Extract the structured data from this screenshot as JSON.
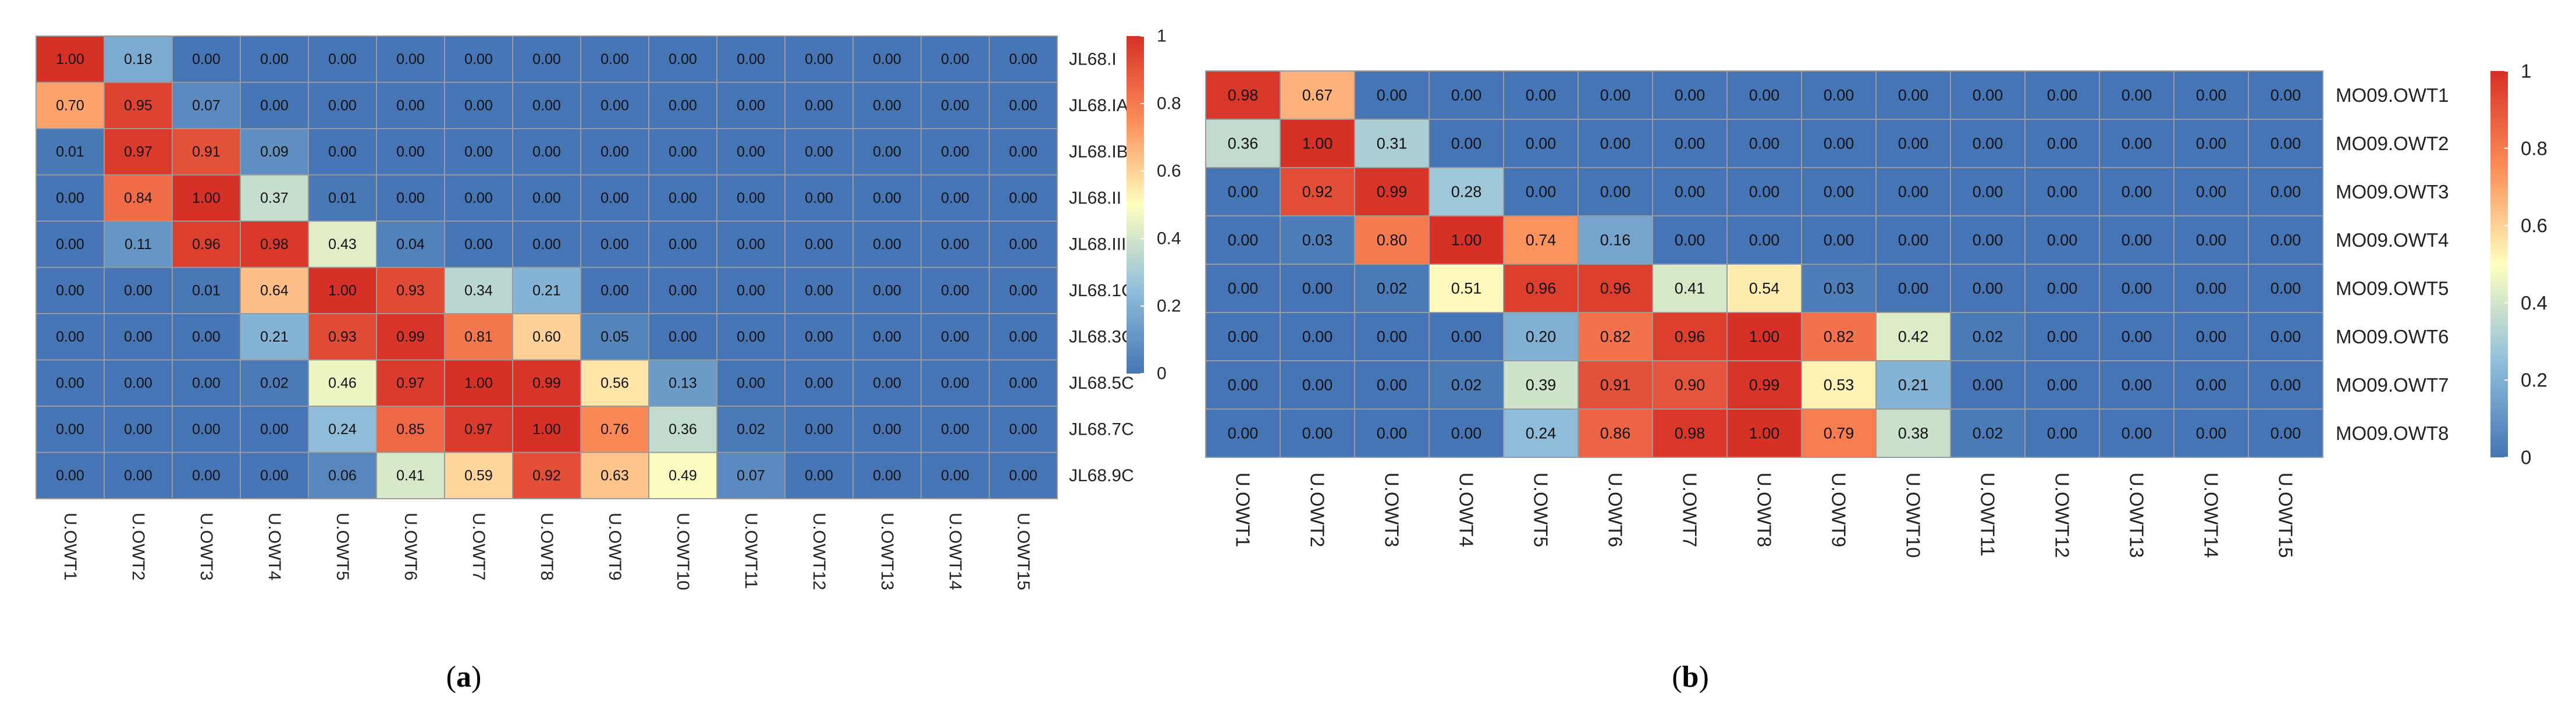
{
  "colorscale": {
    "stops": [
      "#4575b4",
      "#91bfdb",
      "#ffffbf",
      "#fc8d59",
      "#d73027"
    ],
    "cell_border": "#9a9a9a"
  },
  "chart_data": [
    {
      "type": "heatmap",
      "panel_label": "(a)",
      "x_categories": [
        "U.OWT1",
        "U.OWT2",
        "U.OWT3",
        "U.OWT4",
        "U.OWT5",
        "U.OWT6",
        "U.OWT7",
        "U.OWT8",
        "U.OWT9",
        "U.OWT10",
        "U.OWT11",
        "U.OWT12",
        "U.OWT13",
        "U.OWT14",
        "U.OWT15"
      ],
      "y_categories": [
        "JL68.I",
        "JL68.IA",
        "JL68.IB",
        "JL68.II",
        "JL68.III",
        "JL68.1C",
        "JL68.3C",
        "JL68.5C",
        "JL68.7C",
        "JL68.9C"
      ],
      "values": [
        [
          1.0,
          0.18,
          0.0,
          0.0,
          0.0,
          0.0,
          0.0,
          0.0,
          0.0,
          0.0,
          0.0,
          0.0,
          0.0,
          0.0,
          0.0
        ],
        [
          0.7,
          0.95,
          0.07,
          0.0,
          0.0,
          0.0,
          0.0,
          0.0,
          0.0,
          0.0,
          0.0,
          0.0,
          0.0,
          0.0,
          0.0
        ],
        [
          0.01,
          0.97,
          0.91,
          0.09,
          0.0,
          0.0,
          0.0,
          0.0,
          0.0,
          0.0,
          0.0,
          0.0,
          0.0,
          0.0,
          0.0
        ],
        [
          0.0,
          0.84,
          1.0,
          0.37,
          0.01,
          0.0,
          0.0,
          0.0,
          0.0,
          0.0,
          0.0,
          0.0,
          0.0,
          0.0,
          0.0
        ],
        [
          0.0,
          0.11,
          0.96,
          0.98,
          0.43,
          0.04,
          0.0,
          0.0,
          0.0,
          0.0,
          0.0,
          0.0,
          0.0,
          0.0,
          0.0
        ],
        [
          0.0,
          0.0,
          0.01,
          0.64,
          1.0,
          0.93,
          0.34,
          0.21,
          0.0,
          0.0,
          0.0,
          0.0,
          0.0,
          0.0,
          0.0
        ],
        [
          0.0,
          0.0,
          0.0,
          0.21,
          0.93,
          0.99,
          0.81,
          0.6,
          0.05,
          0.0,
          0.0,
          0.0,
          0.0,
          0.0,
          0.0
        ],
        [
          0.0,
          0.0,
          0.0,
          0.02,
          0.46,
          0.97,
          1.0,
          0.99,
          0.56,
          0.13,
          0.0,
          0.0,
          0.0,
          0.0,
          0.0
        ],
        [
          0.0,
          0.0,
          0.0,
          0.0,
          0.24,
          0.85,
          0.97,
          1.0,
          0.76,
          0.36,
          0.02,
          0.0,
          0.0,
          0.0,
          0.0
        ],
        [
          0.0,
          0.0,
          0.0,
          0.0,
          0.06,
          0.41,
          0.59,
          0.92,
          0.63,
          0.49,
          0.07,
          0.0,
          0.0,
          0.0,
          0.0
        ]
      ],
      "colorbar": {
        "min": 0,
        "max": 1,
        "ticks": [
          "0",
          "0.2",
          "0.4",
          "0.6",
          "0.8",
          "1"
        ]
      }
    },
    {
      "type": "heatmap",
      "panel_label": "(b)",
      "x_categories": [
        "U.OWT1",
        "U.OWT2",
        "U.OWT3",
        "U.OWT4",
        "U.OWT5",
        "U.OWT6",
        "U.OWT7",
        "U.OWT8",
        "U.OWT9",
        "U.OWT10",
        "U.OWT11",
        "U.OWT12",
        "U.OWT13",
        "U.OWT14",
        "U.OWT15"
      ],
      "y_categories": [
        "MO09.OWT1",
        "MO09.OWT2",
        "MO09.OWT3",
        "MO09.OWT4",
        "MO09.OWT5",
        "MO09.OWT6",
        "MO09.OWT7",
        "MO09.OWT8"
      ],
      "values": [
        [
          0.98,
          0.67,
          0.0,
          0.0,
          0.0,
          0.0,
          0.0,
          0.0,
          0.0,
          0.0,
          0.0,
          0.0,
          0.0,
          0.0,
          0.0
        ],
        [
          0.36,
          1.0,
          0.31,
          0.0,
          0.0,
          0.0,
          0.0,
          0.0,
          0.0,
          0.0,
          0.0,
          0.0,
          0.0,
          0.0,
          0.0
        ],
        [
          0.0,
          0.92,
          0.99,
          0.28,
          0.0,
          0.0,
          0.0,
          0.0,
          0.0,
          0.0,
          0.0,
          0.0,
          0.0,
          0.0,
          0.0
        ],
        [
          0.0,
          0.03,
          0.8,
          1.0,
          0.74,
          0.16,
          0.0,
          0.0,
          0.0,
          0.0,
          0.0,
          0.0,
          0.0,
          0.0,
          0.0
        ],
        [
          0.0,
          0.0,
          0.02,
          0.51,
          0.96,
          0.96,
          0.41,
          0.54,
          0.03,
          0.0,
          0.0,
          0.0,
          0.0,
          0.0,
          0.0
        ],
        [
          0.0,
          0.0,
          0.0,
          0.0,
          0.2,
          0.82,
          0.96,
          1.0,
          0.82,
          0.42,
          0.02,
          0.0,
          0.0,
          0.0,
          0.0
        ],
        [
          0.0,
          0.0,
          0.0,
          0.02,
          0.39,
          0.91,
          0.9,
          0.99,
          0.53,
          0.21,
          0.0,
          0.0,
          0.0,
          0.0,
          0.0
        ],
        [
          0.0,
          0.0,
          0.0,
          0.0,
          0.24,
          0.86,
          0.98,
          1.0,
          0.79,
          0.38,
          0.02,
          0.0,
          0.0,
          0.0,
          0.0
        ]
      ],
      "colorbar": {
        "min": 0,
        "max": 1,
        "ticks": [
          "0",
          "0.2",
          "0.4",
          "0.6",
          "0.8",
          "1"
        ]
      }
    }
  ]
}
